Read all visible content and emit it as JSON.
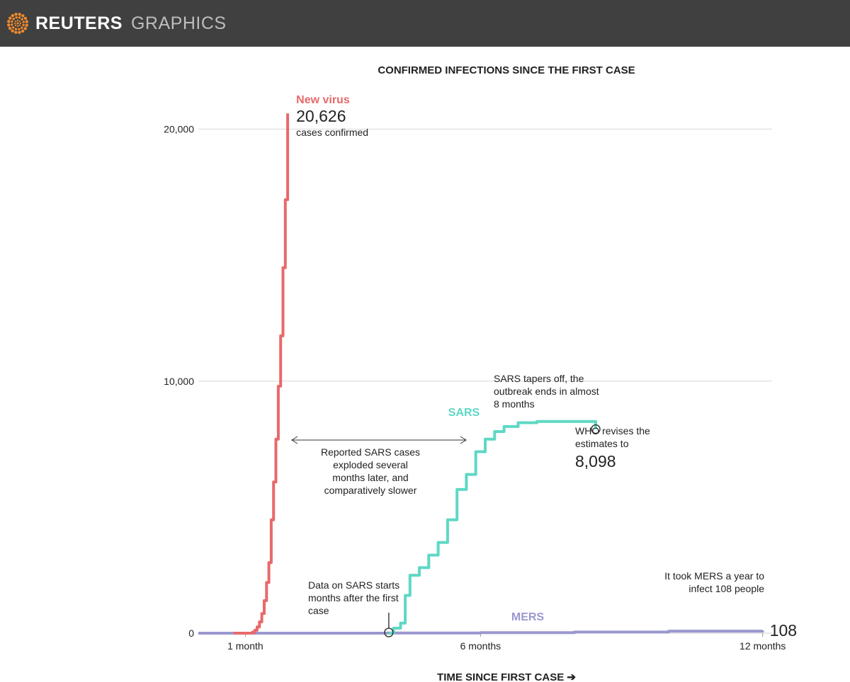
{
  "brand": {
    "name": "REUTERS",
    "sub": "GRAPHICS",
    "logo_icon": "reuters-dot-ring-icon"
  },
  "colors": {
    "new_virus": "#e8696a",
    "sars": "#5ed8c4",
    "mers": "#9b97cf",
    "grid": "#d9d9d9",
    "axis": "#cfcfcf",
    "text": "#222222",
    "topbar": "#404040"
  },
  "chart_data": {
    "type": "line",
    "title": "CONFIRMED INFECTIONS SINCE THE FIRST CASE",
    "xlabel": "TIME SINCE FIRST CASE ➔",
    "ylabel": "",
    "xlim": [
      0,
      12.2
    ],
    "ylim": [
      0,
      20800
    ],
    "yticks": [
      {
        "value": 0,
        "label": "0"
      },
      {
        "value": 10000,
        "label": "10,000"
      },
      {
        "value": 20000,
        "label": "20,000"
      }
    ],
    "xticks": [
      {
        "value": 1,
        "label": "1 month"
      },
      {
        "value": 6,
        "label": "6 months"
      },
      {
        "value": 12,
        "label": "12 months"
      }
    ],
    "grid": true,
    "series": [
      {
        "name": "New virus",
        "color_key": "new_virus",
        "x": [
          0.75,
          1.05,
          1.15,
          1.2,
          1.25,
          1.3,
          1.35,
          1.4,
          1.45,
          1.5,
          1.55,
          1.6,
          1.65,
          1.7,
          1.75,
          1.8,
          1.85,
          1.9
        ],
        "y": [
          0,
          0,
          40,
          120,
          250,
          450,
          780,
          1290,
          2010,
          2800,
          4500,
          6000,
          7700,
          9800,
          11800,
          14500,
          17200,
          20626
        ]
      },
      {
        "name": "SARS",
        "color_key": "sars",
        "x": [
          4.05,
          4.15,
          4.3,
          4.4,
          4.5,
          4.7,
          4.9,
          5.1,
          5.3,
          5.5,
          5.7,
          5.9,
          6.1,
          6.3,
          6.5,
          6.8,
          7.2,
          7.6,
          8.0,
          8.45,
          8.45
        ],
        "y": [
          0,
          200,
          400,
          1500,
          2300,
          2600,
          3100,
          3600,
          4500,
          5700,
          6300,
          7200,
          7700,
          8000,
          8200,
          8350,
          8400,
          8400,
          8400,
          8400,
          8098
        ]
      },
      {
        "name": "MERS",
        "color_key": "mers",
        "x": [
          0,
          2,
          4,
          6,
          8,
          10,
          12
        ],
        "y": [
          0,
          1,
          5,
          20,
          45,
          80,
          108
        ]
      }
    ],
    "series_labels": [
      {
        "series": "New virus",
        "label": "New virus",
        "big": "20,626",
        "sub": "cases confirmed"
      },
      {
        "series": "SARS",
        "label": "SARS"
      },
      {
        "series": "MERS",
        "label": "MERS",
        "big": "108"
      }
    ],
    "annotations": [
      {
        "id": "exploded",
        "lines": [
          "Reported SARS cases",
          "exploded several",
          "months later, and",
          "comparatively slower"
        ]
      },
      {
        "id": "tapers",
        "lines": [
          "SARS tapers off, the",
          "outbreak ends in almost",
          "8 months"
        ]
      },
      {
        "id": "who",
        "lines": [
          "WHO revises the",
          "estimates to"
        ],
        "big": "8,098"
      },
      {
        "id": "data_start",
        "lines": [
          "Data on SARS starts",
          "months after the first",
          "case"
        ]
      },
      {
        "id": "mers_note",
        "lines": [
          "It took MERS a year to",
          "infect 108 people"
        ]
      }
    ]
  }
}
